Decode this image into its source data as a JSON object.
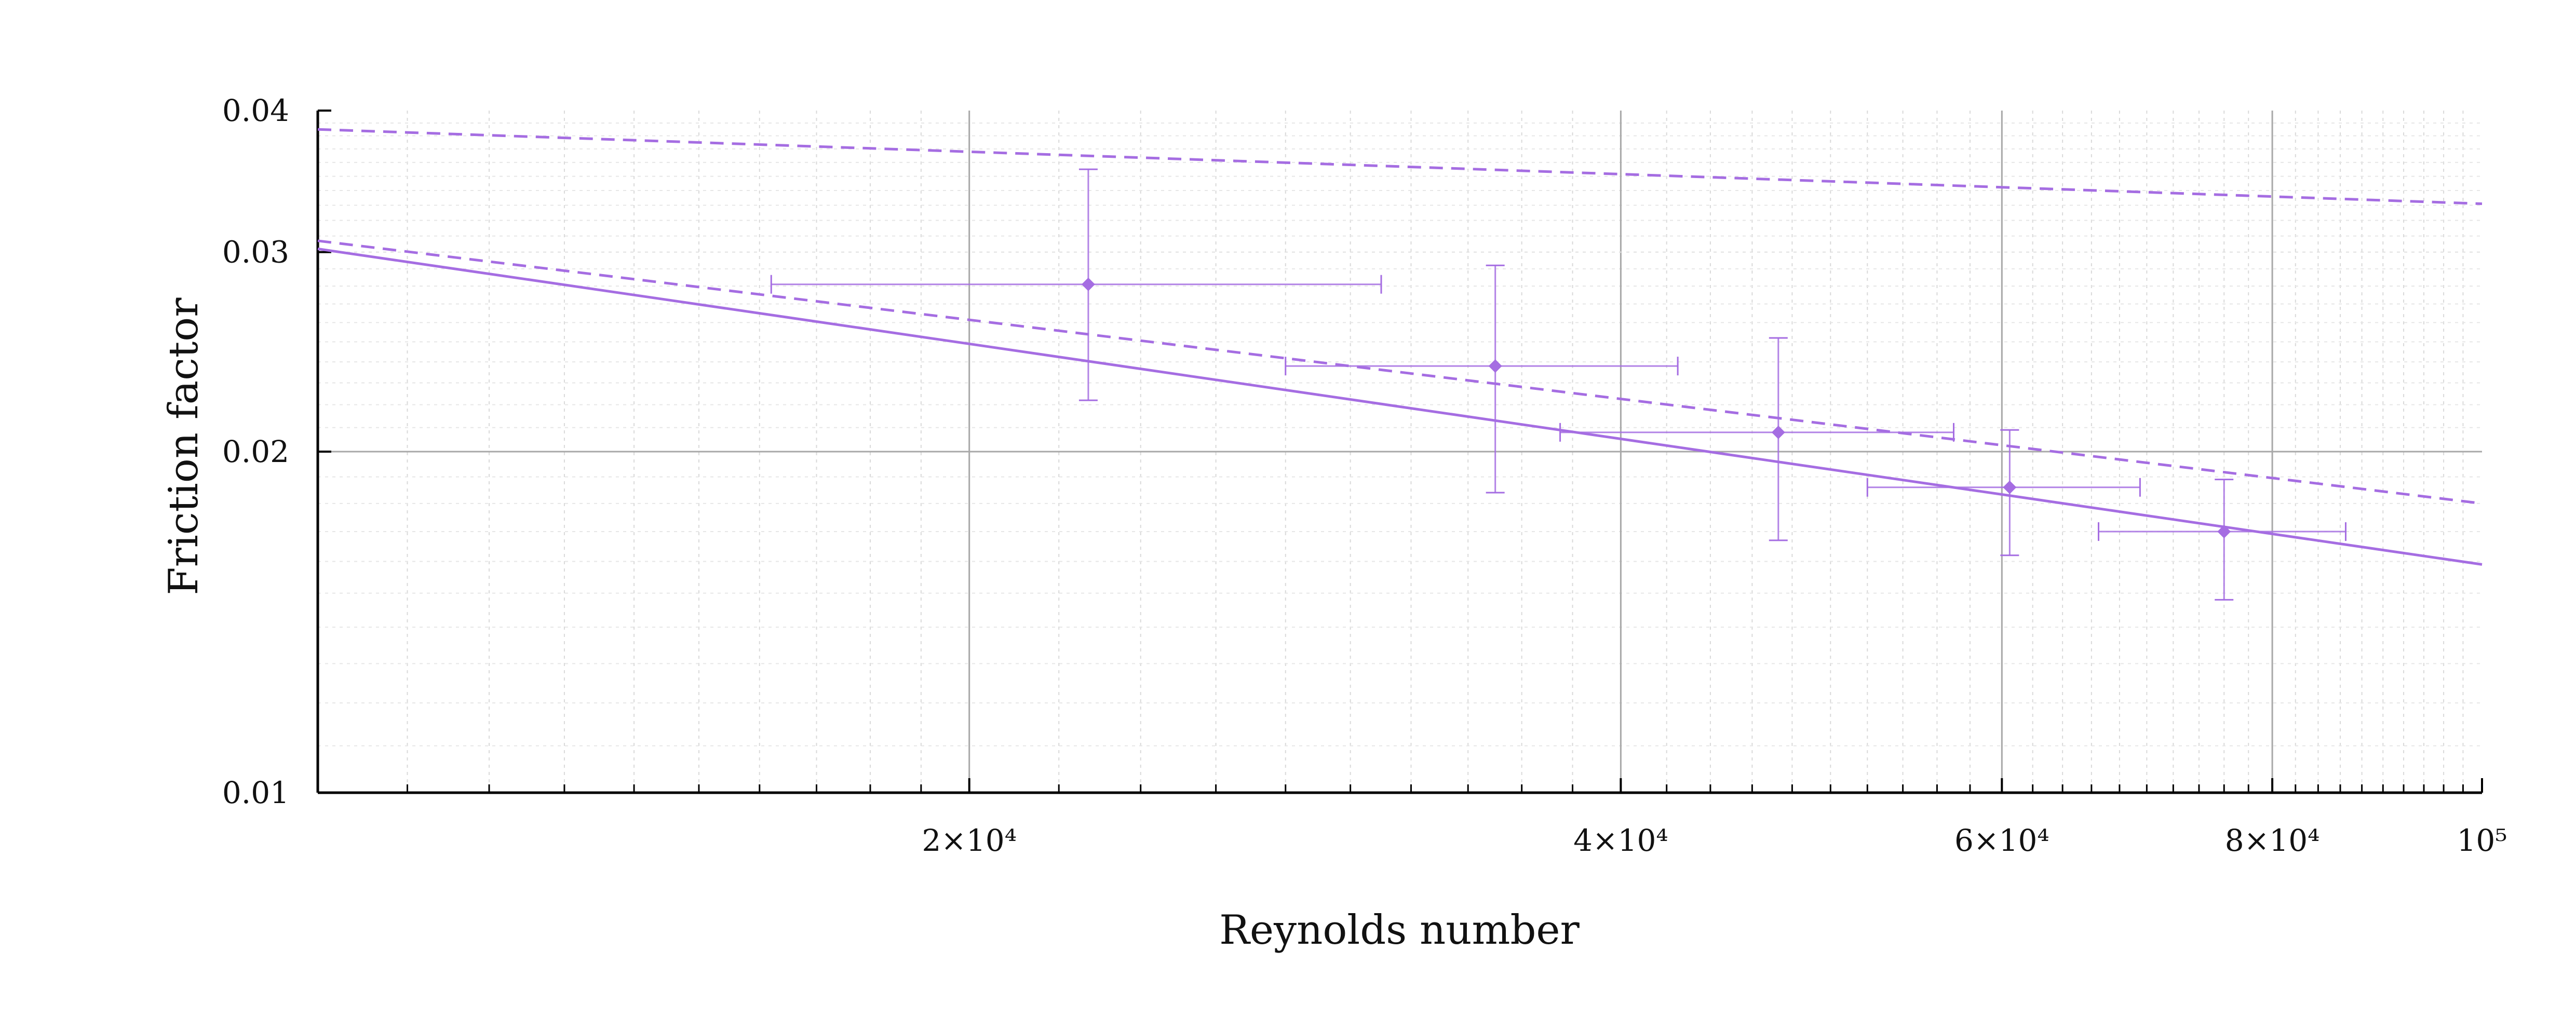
{
  "chart_data": {
    "type": "scatter",
    "xlabel": "Reynolds number",
    "ylabel": "Friction factor",
    "xscale": "log",
    "yscale": "log",
    "xlim": [
      10000,
      100000
    ],
    "ylim": [
      0.01,
      0.04
    ],
    "x_ticks": [
      {
        "value": 20000,
        "label": "2×10⁴"
      },
      {
        "value": 40000,
        "label": "4×10⁴"
      },
      {
        "value": 60000,
        "label": "6×10⁴"
      },
      {
        "value": 80000,
        "label": "8×10⁴"
      },
      {
        "value": 100000,
        "label": "10⁵"
      }
    ],
    "y_ticks": [
      {
        "value": 0.01,
        "label": "0.01"
      },
      {
        "value": 0.02,
        "label": "0.02"
      },
      {
        "value": 0.03,
        "label": "0.03"
      },
      {
        "value": 0.04,
        "label": "0.04"
      }
    ],
    "grid": true,
    "color": "#a56de2",
    "series": [
      {
        "style": "markers-with-error-bars",
        "points": [
          {
            "x": 22700,
            "y": 0.0281,
            "xerr": [
              16200,
              31000
            ],
            "yerr": [
              0.0222,
              0.0355
            ]
          },
          {
            "x": 35000,
            "y": 0.0238,
            "xerr": [
              28000,
              42500
            ],
            "yerr": [
              0.0184,
              0.0292
            ]
          },
          {
            "x": 47300,
            "y": 0.0208,
            "xerr": [
              37500,
              57000
            ],
            "yerr": [
              0.0167,
              0.0252
            ]
          },
          {
            "x": 60500,
            "y": 0.0186,
            "xerr": [
              52000,
              69500
            ],
            "yerr": [
              0.0162,
              0.0209
            ]
          },
          {
            "x": 76000,
            "y": 0.017,
            "xerr": [
              66500,
              86500
            ],
            "yerr": [
              0.0148,
              0.0189
            ]
          }
        ]
      },
      {
        "style": "solid-line",
        "x": [
          10000,
          100000
        ],
        "y": [
          0.0302,
          0.0159
        ]
      },
      {
        "style": "dashed-line",
        "x": [
          10000,
          100000
        ],
        "y": [
          0.0307,
          0.018
        ]
      },
      {
        "style": "dashed-line",
        "x": [
          10000,
          100000
        ],
        "y": [
          0.0385,
          0.0331
        ]
      }
    ]
  }
}
